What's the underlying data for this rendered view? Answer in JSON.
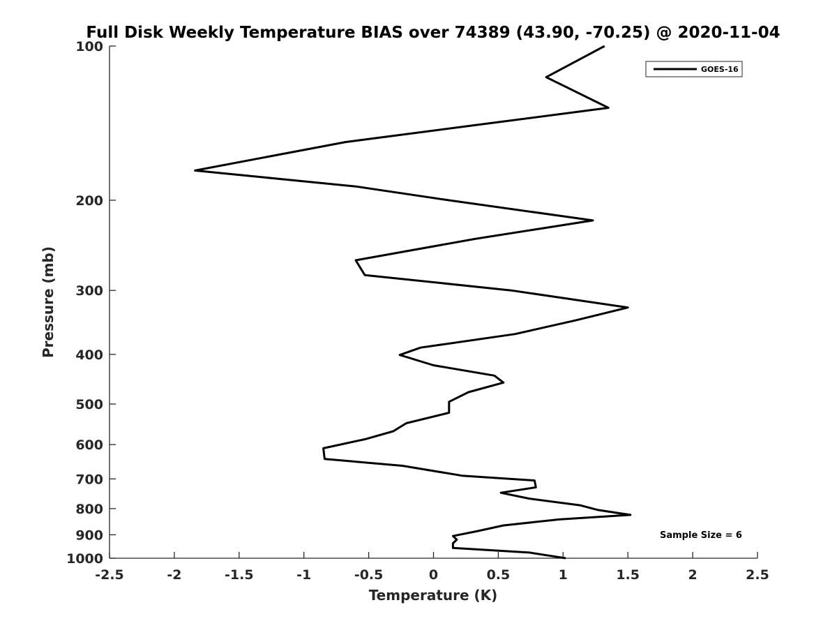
{
  "chart_data": {
    "type": "line",
    "title": "Full Disk Weekly Temperature BIAS over 74389 (43.90, -70.25) @ 2020-11-04",
    "xlabel": "Temperature (K)",
    "ylabel": "Pressure (mb)",
    "xlim": [
      -2.5,
      2.5
    ],
    "ylim": [
      100,
      1000
    ],
    "y_scale": "log",
    "y_reversed": true,
    "x_ticks": [
      "-2.5",
      "-2",
      "-1.5",
      "-1",
      "-0.5",
      "0",
      "0.5",
      "1",
      "1.5",
      "2",
      "2.5"
    ],
    "y_ticks": [
      "100",
      "200",
      "300",
      "400",
      "500",
      "600",
      "700",
      "800",
      "900",
      "1000"
    ],
    "grid": false,
    "legend_position": "top-right",
    "series": [
      {
        "name": "GOES-16",
        "color": "#000000",
        "points": [
          {
            "x": 1.32,
            "p": 100
          },
          {
            "x": 0.87,
            "p": 115
          },
          {
            "x": 1.35,
            "p": 132
          },
          {
            "x": 0.48,
            "p": 141
          },
          {
            "x": -0.68,
            "p": 154
          },
          {
            "x": -1.84,
            "p": 175
          },
          {
            "x": -0.6,
            "p": 188
          },
          {
            "x": 0.12,
            "p": 200
          },
          {
            "x": 1.23,
            "p": 219
          },
          {
            "x": 0.32,
            "p": 238
          },
          {
            "x": -0.6,
            "p": 262
          },
          {
            "x": -0.53,
            "p": 280
          },
          {
            "x": 0.6,
            "p": 300
          },
          {
            "x": 1.5,
            "p": 324
          },
          {
            "x": 1.1,
            "p": 343
          },
          {
            "x": 0.63,
            "p": 365
          },
          {
            "x": -0.1,
            "p": 388
          },
          {
            "x": -0.26,
            "p": 401
          },
          {
            "x": 0.0,
            "p": 420
          },
          {
            "x": 0.47,
            "p": 440
          },
          {
            "x": 0.54,
            "p": 454
          },
          {
            "x": 0.27,
            "p": 474
          },
          {
            "x": 0.12,
            "p": 495
          },
          {
            "x": 0.12,
            "p": 520
          },
          {
            "x": -0.21,
            "p": 545
          },
          {
            "x": -0.31,
            "p": 565
          },
          {
            "x": -0.52,
            "p": 585
          },
          {
            "x": -0.85,
            "p": 610
          },
          {
            "x": -0.84,
            "p": 640
          },
          {
            "x": -0.24,
            "p": 660
          },
          {
            "x": 0.22,
            "p": 690
          },
          {
            "x": 0.78,
            "p": 705
          },
          {
            "x": 0.79,
            "p": 727
          },
          {
            "x": 0.52,
            "p": 745
          },
          {
            "x": 0.74,
            "p": 765
          },
          {
            "x": 1.13,
            "p": 788
          },
          {
            "x": 1.27,
            "p": 805
          },
          {
            "x": 1.52,
            "p": 823
          },
          {
            "x": 0.97,
            "p": 840
          },
          {
            "x": 0.54,
            "p": 863
          },
          {
            "x": 0.34,
            "p": 885
          },
          {
            "x": 0.15,
            "p": 905
          },
          {
            "x": 0.18,
            "p": 920
          },
          {
            "x": 0.15,
            "p": 935
          },
          {
            "x": 0.15,
            "p": 955
          },
          {
            "x": 0.74,
            "p": 975
          },
          {
            "x": 1.02,
            "p": 1000
          }
        ]
      }
    ],
    "annotations": [
      {
        "text": "Sample Size = 6"
      }
    ]
  }
}
